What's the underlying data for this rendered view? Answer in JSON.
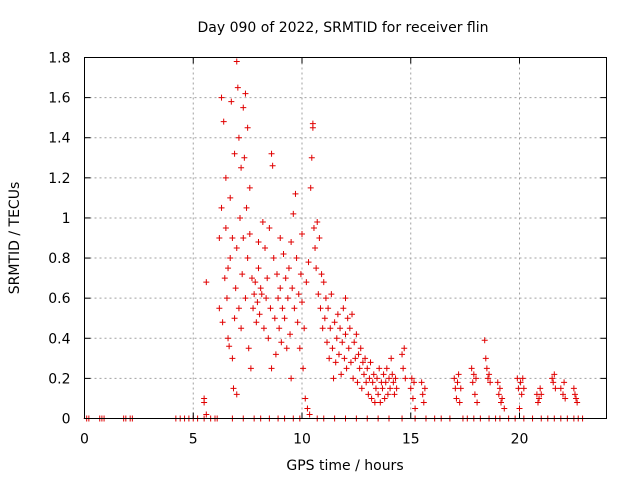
{
  "chart_data": {
    "type": "scatter",
    "title": "Day 090 of 2022, SRMTID for receiver flin",
    "xlabel": "GPS time / hours",
    "ylabel": "SRMTID / TECUs",
    "xlim": [
      0,
      24
    ],
    "ylim": [
      0,
      1.8
    ],
    "xticks": [
      0,
      5,
      10,
      15,
      20
    ],
    "xtick_labels": [
      "0",
      "5",
      "10",
      "15",
      "20"
    ],
    "yticks": [
      0,
      0.2,
      0.4,
      0.6,
      0.8,
      1,
      1.2,
      1.4,
      1.6,
      1.8
    ],
    "ytick_labels": [
      "0",
      "0.2",
      "0.4",
      "0.6",
      "0.8",
      "1",
      "1.2",
      "1.4",
      "1.6",
      "1.8"
    ],
    "grid": true,
    "marker": "+",
    "color": "#e00000",
    "series": [
      {
        "name": "SRMTID",
        "points": [
          [
            0.1,
            0
          ],
          [
            0.2,
            0
          ],
          [
            0.7,
            0
          ],
          [
            0.8,
            0
          ],
          [
            0.9,
            0
          ],
          [
            1.8,
            0
          ],
          [
            1.9,
            0
          ],
          [
            2.1,
            0
          ],
          [
            2.2,
            0
          ],
          [
            4.2,
            0
          ],
          [
            4.4,
            0
          ],
          [
            4.6,
            0
          ],
          [
            4.8,
            0
          ],
          [
            5.0,
            0
          ],
          [
            5.2,
            0
          ],
          [
            5.5,
            0
          ],
          [
            5.5,
            0.08
          ],
          [
            5.5,
            0.1
          ],
          [
            5.6,
            0.68
          ],
          [
            5.6,
            0.02
          ],
          [
            5.8,
            0
          ],
          [
            6.0,
            0
          ],
          [
            6.1,
            0
          ],
          [
            6.2,
            0.9
          ],
          [
            6.2,
            0.55
          ],
          [
            6.3,
            1.6
          ],
          [
            6.3,
            1.05
          ],
          [
            6.35,
            0.48
          ],
          [
            6.4,
            1.48
          ],
          [
            6.45,
            0.7
          ],
          [
            6.5,
            1.2
          ],
          [
            6.5,
            0.95
          ],
          [
            6.55,
            0.6
          ],
          [
            6.6,
            0.4
          ],
          [
            6.6,
            0.75
          ],
          [
            6.65,
            0.36
          ],
          [
            6.7,
            1.1
          ],
          [
            6.7,
            0.8
          ],
          [
            6.75,
            1.58
          ],
          [
            6.8,
            0.3
          ],
          [
            6.8,
            0.9
          ],
          [
            6.85,
            0.15
          ],
          [
            6.9,
            1.32
          ],
          [
            6.9,
            0.5
          ],
          [
            6.95,
            0.65
          ],
          [
            7.0,
            1.78
          ],
          [
            7.0,
            0.12
          ],
          [
            7.0,
            0.85
          ],
          [
            7.05,
            1.65
          ],
          [
            7.1,
            1.4
          ],
          [
            7.1,
            0.55
          ],
          [
            7.15,
            1.0
          ],
          [
            7.2,
            1.25
          ],
          [
            7.2,
            0.45
          ],
          [
            7.25,
            0.72
          ],
          [
            7.3,
            1.55
          ],
          [
            7.3,
            0.9
          ],
          [
            7.35,
            1.3
          ],
          [
            7.4,
            1.62
          ],
          [
            7.4,
            0.6
          ],
          [
            7.45,
            1.05
          ],
          [
            7.5,
            0.8
          ],
          [
            7.5,
            1.45
          ],
          [
            7.55,
            0.35
          ],
          [
            7.6,
            1.15
          ],
          [
            7.6,
            0.92
          ],
          [
            7.65,
            0.25
          ],
          [
            7.7,
            0.7
          ],
          [
            7.75,
            0.55
          ],
          [
            7.8,
            0.62
          ],
          [
            7.85,
            0.68
          ],
          [
            7.9,
            0.48
          ],
          [
            7.95,
            0.58
          ],
          [
            8.0,
            0.88
          ],
          [
            8.0,
            0.75
          ],
          [
            8.05,
            0.52
          ],
          [
            8.1,
            0.65
          ],
          [
            8.15,
            0.62
          ],
          [
            8.2,
            0.98
          ],
          [
            8.25,
            0.45
          ],
          [
            8.3,
            0.85
          ],
          [
            8.35,
            0.6
          ],
          [
            8.4,
            0.7
          ],
          [
            8.45,
            0.4
          ],
          [
            8.5,
            0.95
          ],
          [
            8.55,
            0.55
          ],
          [
            8.6,
            1.32
          ],
          [
            8.6,
            0.25
          ],
          [
            8.65,
            1.26
          ],
          [
            8.7,
            0.8
          ],
          [
            8.75,
            0.5
          ],
          [
            8.8,
            0.32
          ],
          [
            8.85,
            0.72
          ],
          [
            8.9,
            0.6
          ],
          [
            8.95,
            0.45
          ],
          [
            9.0,
            0.9
          ],
          [
            9.0,
            0.65
          ],
          [
            9.05,
            0.38
          ],
          [
            9.1,
            0.55
          ],
          [
            9.15,
            0.82
          ],
          [
            9.2,
            0.5
          ],
          [
            9.25,
            0.7
          ],
          [
            9.3,
            0.35
          ],
          [
            9.35,
            0.6
          ],
          [
            9.4,
            0.75
          ],
          [
            9.45,
            0.42
          ],
          [
            9.5,
            0.88
          ],
          [
            9.5,
            0.2
          ],
          [
            9.55,
            0.65
          ],
          [
            9.6,
            1.02
          ],
          [
            9.65,
            0.55
          ],
          [
            9.7,
            1.12
          ],
          [
            9.75,
            0.8
          ],
          [
            9.8,
            0.48
          ],
          [
            9.85,
            0.62
          ],
          [
            9.9,
            0.35
          ],
          [
            9.95,
            0.72
          ],
          [
            10.0,
            0.92
          ],
          [
            10.0,
            0.58
          ],
          [
            10.05,
            0.25
          ],
          [
            10.1,
            0.45
          ],
          [
            10.15,
            0.1
          ],
          [
            10.2,
            0.68
          ],
          [
            10.25,
            0.05
          ],
          [
            10.3,
            0.78
          ],
          [
            10.35,
            0.02
          ],
          [
            10.4,
            1.15
          ],
          [
            10.45,
            1.3
          ],
          [
            10.5,
            1.47
          ],
          [
            10.5,
            1.45
          ],
          [
            10.55,
            0.95
          ],
          [
            10.6,
            0.85
          ],
          [
            10.65,
            0.75
          ],
          [
            10.7,
            0.98
          ],
          [
            10.75,
            0.62
          ],
          [
            10.8,
            0.9
          ],
          [
            10.85,
            0.55
          ],
          [
            10.9,
            0.72
          ],
          [
            10.95,
            0.45
          ],
          [
            11.0,
            0.68
          ],
          [
            11.05,
            0.5
          ],
          [
            11.1,
            0.6
          ],
          [
            11.15,
            0.38
          ],
          [
            11.2,
            0.55
          ],
          [
            11.25,
            0.3
          ],
          [
            11.3,
            0.45
          ],
          [
            11.35,
            0.62
          ],
          [
            11.4,
            0.35
          ],
          [
            11.45,
            0.2
          ],
          [
            11.5,
            0.48
          ],
          [
            11.55,
            0.28
          ],
          [
            11.6,
            0.4
          ],
          [
            11.65,
            0.52
          ],
          [
            11.7,
            0.32
          ],
          [
            11.75,
            0.45
          ],
          [
            11.8,
            0.22
          ],
          [
            11.85,
            0.38
          ],
          [
            11.9,
            0.55
          ],
          [
            11.95,
            0.3
          ],
          [
            12.0,
            0.6
          ],
          [
            12.0,
            0.42
          ],
          [
            12.05,
            0.25
          ],
          [
            12.1,
            0.5
          ],
          [
            12.15,
            0.35
          ],
          [
            12.2,
            0.45
          ],
          [
            12.25,
            0.28
          ],
          [
            12.3,
            0.52
          ],
          [
            12.35,
            0.2
          ],
          [
            12.4,
            0.38
          ],
          [
            12.45,
            0.3
          ],
          [
            12.5,
            0.42
          ],
          [
            12.55,
            0.18
          ],
          [
            12.6,
            0.32
          ],
          [
            12.65,
            0.25
          ],
          [
            12.7,
            0.35
          ],
          [
            12.75,
            0.15
          ],
          [
            12.8,
            0.28
          ],
          [
            12.85,
            0.22
          ],
          [
            12.9,
            0.3
          ],
          [
            12.95,
            0.18
          ],
          [
            13.0,
            0.25
          ],
          [
            13.05,
            0.12
          ],
          [
            13.1,
            0.2
          ],
          [
            13.15,
            0.28
          ],
          [
            13.2,
            0.1
          ],
          [
            13.25,
            0.18
          ],
          [
            13.3,
            0.22
          ],
          [
            13.35,
            0.08
          ],
          [
            13.4,
            0.15
          ],
          [
            13.45,
            0.2
          ],
          [
            13.5,
            0.12
          ],
          [
            13.55,
            0.25
          ],
          [
            13.6,
            0.08
          ],
          [
            13.65,
            0.18
          ],
          [
            13.7,
            0.15
          ],
          [
            13.75,
            0.22
          ],
          [
            13.8,
            0.1
          ],
          [
            13.85,
            0.18
          ],
          [
            13.9,
            0.25
          ],
          [
            13.95,
            0.12
          ],
          [
            14.0,
            0.2
          ],
          [
            14.05,
            0.15
          ],
          [
            14.1,
            0.3
          ],
          [
            14.15,
            0.22
          ],
          [
            14.2,
            0.18
          ],
          [
            14.25,
            0.12
          ],
          [
            14.3,
            0.2
          ],
          [
            14.35,
            0.15
          ],
          [
            14.6,
            0.32
          ],
          [
            14.65,
            0.25
          ],
          [
            14.7,
            0.35
          ],
          [
            14.75,
            0.2
          ],
          [
            15.0,
            0.15
          ],
          [
            15.05,
            0.2
          ],
          [
            15.1,
            0.1
          ],
          [
            15.15,
            0.18
          ],
          [
            15.2,
            0.05
          ],
          [
            15.5,
            0.18
          ],
          [
            15.55,
            0.12
          ],
          [
            15.6,
            0.08
          ],
          [
            15.65,
            0.15
          ],
          [
            17.0,
            0.2
          ],
          [
            17.05,
            0.15
          ],
          [
            17.1,
            0.1
          ],
          [
            17.15,
            0.18
          ],
          [
            17.2,
            0.22
          ],
          [
            17.25,
            0.08
          ],
          [
            17.3,
            0.15
          ],
          [
            17.8,
            0.25
          ],
          [
            17.85,
            0.18
          ],
          [
            17.9,
            0.22
          ],
          [
            17.95,
            0.12
          ],
          [
            18.0,
            0.2
          ],
          [
            18.05,
            0.08
          ],
          [
            18.4,
            0.39
          ],
          [
            18.45,
            0.3
          ],
          [
            18.5,
            0.25
          ],
          [
            18.55,
            0.2
          ],
          [
            18.6,
            0.22
          ],
          [
            18.65,
            0.18
          ],
          [
            19.0,
            0.18
          ],
          [
            19.05,
            0.12
          ],
          [
            19.1,
            0.15
          ],
          [
            19.15,
            0.08
          ],
          [
            19.2,
            0.1
          ],
          [
            19.3,
            0.05
          ],
          [
            19.9,
            0.2
          ],
          [
            19.95,
            0.15
          ],
          [
            20.0,
            0.05
          ],
          [
            20.05,
            0.18
          ],
          [
            20.1,
            0.12
          ],
          [
            20.15,
            0.2
          ],
          [
            20.2,
            0.15
          ],
          [
            20.8,
            0.12
          ],
          [
            20.85,
            0.08
          ],
          [
            20.9,
            0.1
          ],
          [
            20.95,
            0.15
          ],
          [
            21.0,
            0.12
          ],
          [
            21.5,
            0.2
          ],
          [
            21.55,
            0.18
          ],
          [
            21.6,
            0.22
          ],
          [
            21.65,
            0.15
          ],
          [
            21.9,
            0.15
          ],
          [
            22.0,
            0.12
          ],
          [
            22.05,
            0.18
          ],
          [
            22.1,
            0.1
          ],
          [
            22.5,
            0.15
          ],
          [
            22.55,
            0.12
          ],
          [
            22.6,
            0.1
          ],
          [
            22.65,
            0.08
          ],
          [
            6.8,
            0
          ],
          [
            7.3,
            0
          ],
          [
            7.8,
            0
          ],
          [
            8.1,
            0
          ],
          [
            8.5,
            0
          ],
          [
            8.9,
            0
          ],
          [
            9.2,
            0
          ],
          [
            9.6,
            0
          ],
          [
            9.9,
            0
          ],
          [
            10.7,
            0
          ],
          [
            11.0,
            0
          ],
          [
            11.5,
            0
          ],
          [
            12.0,
            0
          ],
          [
            12.5,
            0
          ],
          [
            13.0,
            0
          ],
          [
            13.5,
            0
          ],
          [
            14.0,
            0
          ],
          [
            14.6,
            0
          ],
          [
            15.2,
            0
          ],
          [
            15.7,
            0
          ],
          [
            16.1,
            0
          ],
          [
            16.4,
            0
          ],
          [
            16.8,
            0
          ],
          [
            17.4,
            0
          ],
          [
            17.6,
            0
          ],
          [
            17.9,
            0
          ],
          [
            18.2,
            0
          ],
          [
            18.6,
            0
          ],
          [
            18.9,
            0
          ],
          [
            19.1,
            0
          ],
          [
            19.5,
            0
          ],
          [
            19.8,
            0
          ],
          [
            20.2,
            0
          ],
          [
            20.6,
            0
          ],
          [
            21.0,
            0
          ],
          [
            21.3,
            0
          ],
          [
            21.6,
            0
          ],
          [
            21.9,
            0
          ],
          [
            22.2,
            0
          ],
          [
            22.5,
            0
          ],
          [
            22.7,
            0
          ],
          [
            22.9,
            0
          ]
        ]
      }
    ]
  }
}
